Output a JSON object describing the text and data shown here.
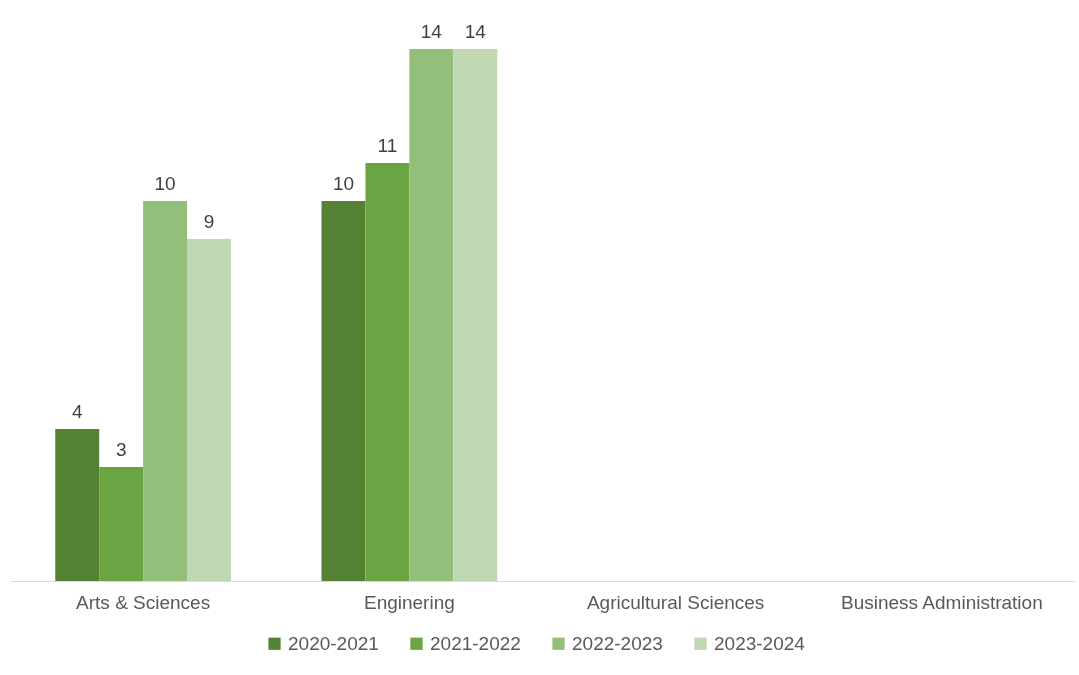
{
  "chart_data": {
    "type": "bar",
    "categories": [
      "Arts & Sciences",
      "Enginering",
      "Agricultural Sciences",
      "Business Administration"
    ],
    "series": [
      {
        "name": "2020-2021",
        "color": "#548235",
        "values": [
          4,
          10,
          null,
          null
        ]
      },
      {
        "name": "2021-2022",
        "color": "#6aa443",
        "values": [
          3,
          11,
          null,
          null
        ]
      },
      {
        "name": "2022-2023",
        "color": "#93bf7a",
        "values": [
          10,
          14,
          null,
          null
        ]
      },
      {
        "name": "2023-2024",
        "color": "#c0d8b2",
        "values": [
          9,
          14,
          null,
          null
        ]
      }
    ],
    "data_labels": true,
    "legend": "bottom",
    "grid": false
  }
}
